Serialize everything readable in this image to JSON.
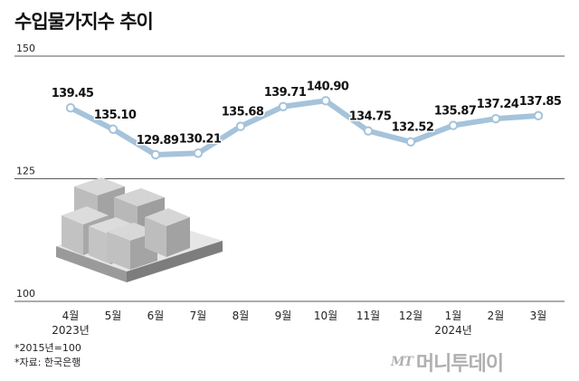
{
  "title": "수입물가지수 추이",
  "footnotes": [
    "*2015년=100",
    "*자료: 한국은행"
  ],
  "logo": {
    "mark": "MT",
    "name": "머니투데이"
  },
  "colors": {
    "line": "#a5c3da",
    "marker_stroke": "#a5c3da",
    "marker_fill": "#ffffff",
    "grid": "#222222",
    "text": "#222222"
  },
  "chart_data": {
    "type": "line",
    "title": "수입물가지수 추이",
    "categories": [
      "4월",
      "5월",
      "6월",
      "7월",
      "8월",
      "9월",
      "10월",
      "11월",
      "12월",
      "1월",
      "2월",
      "3월"
    ],
    "year_labels": [
      {
        "category_index": 0,
        "label": "2023년"
      },
      {
        "category_index": 9,
        "label": "2024년"
      }
    ],
    "values": [
      139.45,
      135.1,
      129.89,
      130.21,
      135.68,
      139.71,
      140.9,
      134.75,
      132.52,
      135.87,
      137.24,
      137.85
    ],
    "value_labels": [
      "139.45",
      "135.10",
      "129.89",
      "130.21",
      "135.68",
      "139.71",
      "140.90",
      "134.75",
      "132.52",
      "135.87",
      "137.24",
      "137.85"
    ],
    "yticks": [
      100,
      125,
      150
    ],
    "ylim": [
      100,
      150
    ],
    "xlabel": "",
    "ylabel": "",
    "grid": true,
    "legend": "none"
  }
}
